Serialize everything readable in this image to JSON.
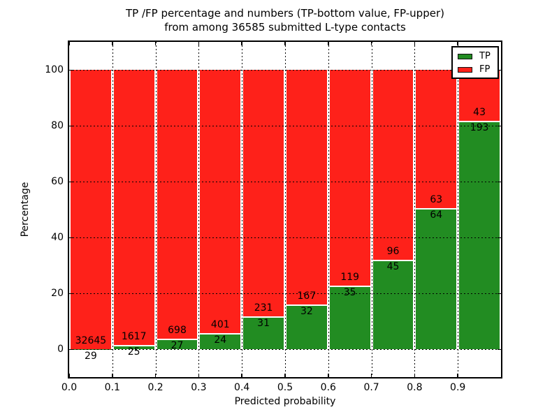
{
  "title": {
    "line1": "TP /FP percentage and numbers (TP-bottom value, FP-upper)",
    "line2": "from among 36585 submitted L-type contacts"
  },
  "axes": {
    "xlabel": "Predicted probability",
    "ylabel": "Percentage",
    "ytick_labels": [
      "0",
      "20",
      "40",
      "60",
      "80",
      "100"
    ],
    "ytick_values": [
      0,
      20,
      40,
      60,
      80,
      100
    ],
    "xtick_labels": [
      "0.0",
      "0.1",
      "0.2",
      "0.3",
      "0.4",
      "0.5",
      "0.6",
      "0.7",
      "0.8",
      "0.9"
    ],
    "xtick_values": [
      0.0,
      0.1,
      0.2,
      0.3,
      0.4,
      0.5,
      0.6,
      0.7,
      0.8,
      0.9
    ],
    "ylim": [
      -10,
      110
    ],
    "xlim": [
      0.0,
      1.0
    ],
    "grid": "dotted-black-both-directions"
  },
  "legend": {
    "position": "upper-right",
    "entries": [
      {
        "label": "TP",
        "color": "#228C22"
      },
      {
        "label": "FP",
        "color": "#FE211A"
      }
    ]
  },
  "colors": {
    "tp_green": "#228C22",
    "fp_red": "#FE211A",
    "divider_white": "#ffffff",
    "text": "#000000",
    "background": "#ffffff"
  },
  "chart_data": {
    "type": "bar",
    "subtype": "stacked-percentage-100",
    "title": "TP /FP percentage and numbers (TP-bottom value, FP-upper) from among 36585 submitted L-type contacts",
    "xlabel": "Predicted probability",
    "ylabel": "Percentage",
    "ylim": [
      -10,
      110
    ],
    "total_contacts": 36585,
    "categories": [
      "0.0-0.1",
      "0.1-0.2",
      "0.2-0.3",
      "0.3-0.4",
      "0.4-0.5",
      "0.5-0.6",
      "0.6-0.7",
      "0.7-0.8",
      "0.8-0.9",
      "0.9-1.0"
    ],
    "series": [
      {
        "name": "TP",
        "color": "#228C22",
        "values": [
          29,
          25,
          27,
          24,
          31,
          32,
          35,
          45,
          64,
          193
        ]
      },
      {
        "name": "FP",
        "color": "#FE211A",
        "values": [
          32645,
          1617,
          698,
          401,
          231,
          167,
          119,
          96,
          63,
          43
        ]
      }
    ],
    "note": "Each bar stacked to 100%; green TP share at bottom, red FP share above; numeric labels show raw counts (FP number above boundary, TP number below boundary)"
  }
}
